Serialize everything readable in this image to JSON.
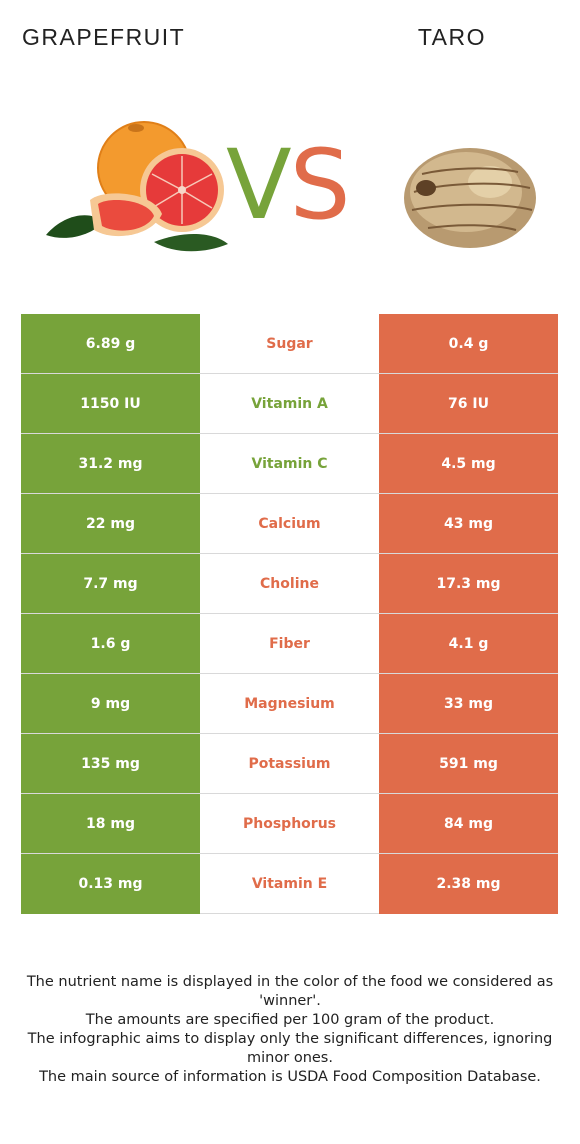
{
  "header": {
    "left_food": "GRAPEFRUIT",
    "right_food": "TARO",
    "vs_v": "V",
    "vs_s": "S"
  },
  "colors": {
    "left_accent": "#77a33a",
    "right_accent": "#e06c4a"
  },
  "images": {
    "left": "grapefruit-image",
    "right": "taro-image"
  },
  "rows": [
    {
      "left": "6.89 g",
      "nutrient": "Sugar",
      "right": "0.4 g",
      "winner": "right"
    },
    {
      "left": "1150 IU",
      "nutrient": "Vitamin A",
      "right": "76 IU",
      "winner": "left"
    },
    {
      "left": "31.2 mg",
      "nutrient": "Vitamin C",
      "right": "4.5 mg",
      "winner": "left"
    },
    {
      "left": "22 mg",
      "nutrient": "Calcium",
      "right": "43 mg",
      "winner": "right"
    },
    {
      "left": "7.7 mg",
      "nutrient": "Choline",
      "right": "17.3 mg",
      "winner": "right"
    },
    {
      "left": "1.6 g",
      "nutrient": "Fiber",
      "right": "4.1 g",
      "winner": "right"
    },
    {
      "left": "9 mg",
      "nutrient": "Magnesium",
      "right": "33 mg",
      "winner": "right"
    },
    {
      "left": "135 mg",
      "nutrient": "Potassium",
      "right": "591 mg",
      "winner": "right"
    },
    {
      "left": "18 mg",
      "nutrient": "Phosphorus",
      "right": "84 mg",
      "winner": "right"
    },
    {
      "left": "0.13 mg",
      "nutrient": "Vitamin E",
      "right": "2.38 mg",
      "winner": "right"
    }
  ],
  "footer": {
    "line1": "The nutrient name is displayed in the color of the food we considered as 'winner'.",
    "line2": "The amounts are specified per 100 gram of the product.",
    "line3": "The infographic aims to display only the significant differences, ignoring minor ones.",
    "line4": "The main source of information is USDA Food Composition Database."
  }
}
